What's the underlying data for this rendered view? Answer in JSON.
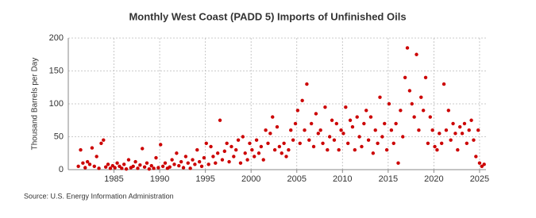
{
  "chart_data": {
    "type": "scatter",
    "title": "Monthly West Coast (PADD 5) Imports of Unfinished Oils",
    "y_label": "Thousand Barrels per Day",
    "source": "Source: U.S. Energy Information Administration",
    "color": "#cc0000",
    "grid": true,
    "xlim": [
      1980,
      2025.7
    ],
    "ylim": [
      0,
      200
    ],
    "xticks": [
      1985,
      1990,
      1995,
      2000,
      2005,
      2010,
      2015,
      2020,
      2025
    ],
    "yticks": [
      0,
      50,
      100,
      150,
      200
    ],
    "x": [
      1981.1,
      1981.35,
      1981.6,
      1981.85,
      1982.1,
      1982.35,
      1982.6,
      1982.85,
      1983.1,
      1983.35,
      1983.6,
      1983.85,
      1984.1,
      1984.35,
      1984.6,
      1984.85,
      1985.1,
      1985.35,
      1985.6,
      1985.85,
      1986.1,
      1986.35,
      1986.6,
      1986.85,
      1987.1,
      1987.35,
      1987.6,
      1987.85,
      1988.1,
      1988.35,
      1988.6,
      1988.85,
      1989.1,
      1989.35,
      1989.6,
      1989.85,
      1990.1,
      1990.35,
      1990.6,
      1990.85,
      1991.1,
      1991.35,
      1991.6,
      1991.85,
      1992.1,
      1992.35,
      1992.6,
      1992.85,
      1993.1,
      1993.35,
      1993.6,
      1993.85,
      1994.1,
      1994.35,
      1994.6,
      1994.85,
      1995.1,
      1995.35,
      1995.6,
      1995.85,
      1996.1,
      1996.35,
      1996.6,
      1996.85,
      1997.1,
      1997.35,
      1997.6,
      1997.85,
      1998.1,
      1998.35,
      1998.6,
      1998.85,
      1999.1,
      1999.35,
      1999.6,
      1999.85,
      2000.1,
      2000.35,
      2000.6,
      2000.85,
      2001.1,
      2001.35,
      2001.6,
      2001.85,
      2002.1,
      2002.35,
      2002.6,
      2002.85,
      2003.1,
      2003.35,
      2003.6,
      2003.85,
      2004.1,
      2004.35,
      2004.6,
      2004.85,
      2005.1,
      2005.35,
      2005.6,
      2005.85,
      2006.1,
      2006.35,
      2006.6,
      2006.85,
      2007.1,
      2007.35,
      2007.6,
      2007.85,
      2008.1,
      2008.35,
      2008.6,
      2008.85,
      2009.1,
      2009.35,
      2009.6,
      2009.85,
      2010.1,
      2010.35,
      2010.6,
      2010.85,
      2011.1,
      2011.35,
      2011.6,
      2011.85,
      2012.1,
      2012.35,
      2012.6,
      2012.85,
      2013.1,
      2013.35,
      2013.6,
      2013.85,
      2014.1,
      2014.35,
      2014.6,
      2014.85,
      2015.1,
      2015.35,
      2015.6,
      2015.85,
      2016.1,
      2016.35,
      2016.6,
      2016.85,
      2017.1,
      2017.35,
      2017.6,
      2017.85,
      2018.1,
      2018.35,
      2018.6,
      2018.85,
      2019.1,
      2019.35,
      2019.6,
      2019.85,
      2020.1,
      2020.35,
      2020.6,
      2020.85,
      2021.1,
      2021.35,
      2021.6,
      2021.85,
      2022.1,
      2022.35,
      2022.6,
      2022.85,
      2023.1,
      2023.35,
      2023.6,
      2023.85,
      2024.1,
      2024.35,
      2024.6,
      2024.85,
      2025.0,
      2025.25,
      2025.5
    ],
    "values": [
      5,
      30,
      10,
      3,
      12,
      8,
      33,
      5,
      20,
      2,
      40,
      45,
      4,
      8,
      2,
      6,
      3,
      10,
      5,
      2,
      8,
      1,
      15,
      3,
      5,
      12,
      2,
      7,
      32,
      4,
      10,
      1,
      6,
      2,
      18,
      3,
      38,
      5,
      10,
      2,
      4,
      15,
      8,
      25,
      6,
      12,
      3,
      20,
      10,
      2,
      15,
      8,
      30,
      12,
      5,
      18,
      40,
      8,
      35,
      20,
      10,
      25,
      75,
      15,
      28,
      40,
      12,
      35,
      20,
      30,
      45,
      10,
      50,
      25,
      15,
      40,
      30,
      20,
      45,
      25,
      35,
      15,
      60,
      40,
      55,
      80,
      30,
      65,
      35,
      25,
      40,
      20,
      30,
      60,
      45,
      70,
      90,
      40,
      105,
      60,
      130,
      45,
      70,
      35,
      85,
      55,
      60,
      40,
      95,
      30,
      50,
      75,
      45,
      70,
      30,
      60,
      55,
      95,
      40,
      75,
      65,
      30,
      80,
      50,
      35,
      70,
      90,
      45,
      80,
      25,
      60,
      40,
      110,
      50,
      70,
      30,
      100,
      60,
      40,
      70,
      10,
      90,
      50,
      140,
      185,
      120,
      100,
      80,
      175,
      60,
      110,
      90,
      140,
      40,
      80,
      60,
      35,
      30,
      55,
      40,
      130,
      60,
      90,
      45,
      70,
      55,
      30,
      65,
      55,
      70,
      40,
      60,
      75,
      45,
      20,
      60,
      10,
      5,
      8
    ]
  }
}
